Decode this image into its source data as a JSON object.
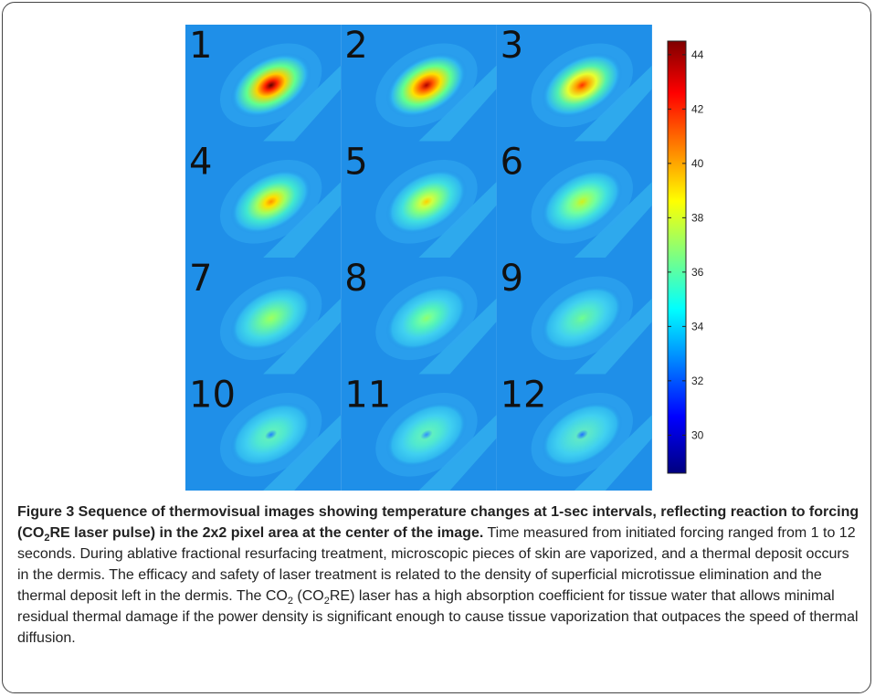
{
  "figure": {
    "panels": [
      "1",
      "2",
      "3",
      "4",
      "5",
      "6",
      "7",
      "8",
      "9",
      "10",
      "11",
      "12"
    ],
    "colorbar": {
      "lim": [
        28.6,
        44.5
      ],
      "ticks": [
        30,
        32,
        34,
        36,
        38,
        40,
        42,
        44
      ]
    }
  },
  "caption": {
    "title": [
      "Figure 3 Sequence of thermovisual images showing temperature changes at 1-sec intervals, reflecting reaction to forcing (CO",
      "2",
      "RE laser pulse) in the 2x2 pixel area at the center of the image."
    ],
    "body": [
      " Time measured from initiated forcing ranged from 1 to 12 seconds. During ablative fractional resurfacing treatment, microscopic pieces of skin are vaporized, and a thermal deposit occurs in the dermis. The efficacy and safety of laser treatment is related to the density of superficial microtissue elimination and the thermal deposit left in the dermis. The CO",
      "2",
      " (CO",
      "2",
      "RE) laser has a high absorption coefficient for tissue water that allows minimal residual thermal damage if the power density is significant enough to cause tissue vaporization that outpaces the speed of thermal diffusion."
    ]
  }
}
